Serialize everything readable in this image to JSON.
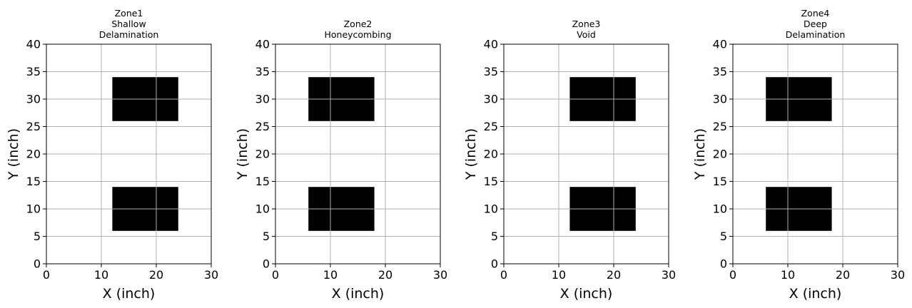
{
  "chart_data": [
    {
      "type": "bar",
      "title_lines": [
        "Zone1",
        "Shallow",
        "Delamination"
      ],
      "xlabel": "X (inch)",
      "ylabel": "Y (inch)",
      "xlim": [
        0,
        30
      ],
      "ylim": [
        0,
        40
      ],
      "xticks": [
        0,
        10,
        20,
        30
      ],
      "yticks": [
        0,
        5,
        10,
        15,
        20,
        25,
        30,
        35,
        40
      ],
      "grid": true,
      "rects": [
        {
          "x0": 12,
          "x1": 24,
          "y0": 26,
          "y1": 34
        },
        {
          "x0": 12,
          "x1": 24,
          "y0": 6,
          "y1": 14
        }
      ],
      "rect_color": "#000000"
    },
    {
      "type": "bar",
      "title_lines": [
        "Zone2",
        "Honeycombing"
      ],
      "xlabel": "X (inch)",
      "ylabel": "Y (inch)",
      "xlim": [
        0,
        30
      ],
      "ylim": [
        0,
        40
      ],
      "xticks": [
        0,
        10,
        20,
        30
      ],
      "yticks": [
        0,
        5,
        10,
        15,
        20,
        25,
        30,
        35,
        40
      ],
      "grid": true,
      "rects": [
        {
          "x0": 6,
          "x1": 18,
          "y0": 26,
          "y1": 34
        },
        {
          "x0": 6,
          "x1": 18,
          "y0": 6,
          "y1": 14
        }
      ],
      "rect_color": "#000000"
    },
    {
      "type": "bar",
      "title_lines": [
        "Zone3",
        "Void"
      ],
      "xlabel": "X (inch)",
      "ylabel": "Y (inch)",
      "xlim": [
        0,
        30
      ],
      "ylim": [
        0,
        40
      ],
      "xticks": [
        0,
        10,
        20,
        30
      ],
      "yticks": [
        0,
        5,
        10,
        15,
        20,
        25,
        30,
        35,
        40
      ],
      "grid": true,
      "rects": [
        {
          "x0": 12,
          "x1": 24,
          "y0": 26,
          "y1": 34
        },
        {
          "x0": 12,
          "x1": 24,
          "y0": 6,
          "y1": 14
        }
      ],
      "rect_color": "#000000"
    },
    {
      "type": "bar",
      "title_lines": [
        "Zone4",
        "Deep",
        "Delamination"
      ],
      "xlabel": "X (inch)",
      "ylabel": "Y (inch)",
      "xlim": [
        0,
        30
      ],
      "ylim": [
        0,
        40
      ],
      "xticks": [
        0,
        10,
        20,
        30
      ],
      "yticks": [
        0,
        5,
        10,
        15,
        20,
        25,
        30,
        35,
        40
      ],
      "grid": true,
      "rects": [
        {
          "x0": 6,
          "x1": 18,
          "y0": 26,
          "y1": 34
        },
        {
          "x0": 6,
          "x1": 18,
          "y0": 6,
          "y1": 14
        }
      ],
      "rect_color": "#000000"
    }
  ],
  "colors": {
    "grid": "#b0b0b0",
    "axes": "#000000",
    "background": "#ffffff"
  }
}
